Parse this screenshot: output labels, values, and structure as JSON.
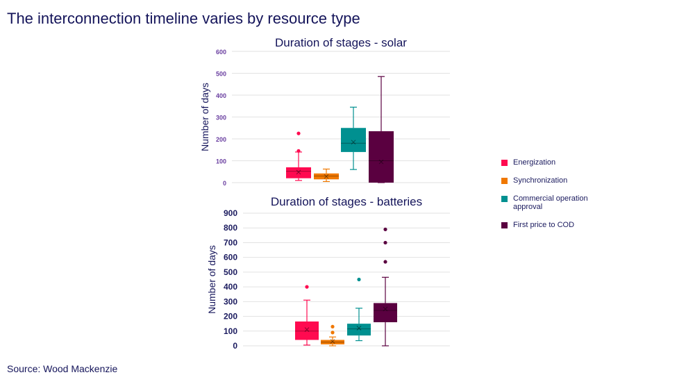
{
  "header": {
    "title": "The interconnection timeline varies by resource type"
  },
  "footer": {
    "source": "Source: Wood Mackenzie"
  },
  "legend": [
    {
      "label": "Energization",
      "color": "#ff0a50"
    },
    {
      "label": "Synchronization",
      "color": "#f07800"
    },
    {
      "label": "Commercial operation approval",
      "color": "#009090"
    },
    {
      "label": "First price to COD",
      "color": "#5a0040"
    }
  ],
  "chart_data": [
    {
      "type": "box",
      "title": "Duration of stages - solar",
      "ylabel": "Number of days",
      "ylim": [
        0,
        600
      ],
      "yticks": [
        0,
        100,
        200,
        300,
        400,
        500,
        600
      ],
      "tick_color": "#6a3fa0",
      "grid": true,
      "series": [
        {
          "name": "Energization",
          "color": "#ff0a50",
          "min": 10,
          "q1": 20,
          "median": 52,
          "q3": 70,
          "max": 140,
          "mean": 48,
          "outliers": [
            145,
            225
          ]
        },
        {
          "name": "Synchronization",
          "color": "#f07800",
          "min": 5,
          "q1": 15,
          "median": 30,
          "q3": 42,
          "max": 62,
          "mean": 28,
          "outliers": []
        },
        {
          "name": "Commercial operation approval",
          "color": "#009090",
          "min": 60,
          "q1": 140,
          "median": 180,
          "q3": 250,
          "max": 345,
          "mean": 185,
          "outliers": []
        },
        {
          "name": "First price to COD",
          "color": "#5a0040",
          "min": 0,
          "q1": 0,
          "median": 100,
          "q3": 235,
          "max": 485,
          "mean": 95,
          "outliers": []
        }
      ]
    },
    {
      "type": "box",
      "title": "Duration of stages - batteries",
      "ylabel": "Number of days",
      "ylim": [
        0,
        900
      ],
      "yticks": [
        0,
        100,
        200,
        300,
        400,
        500,
        600,
        700,
        800,
        900
      ],
      "tick_color": "#1a1a5e",
      "grid": true,
      "series": [
        {
          "name": "Energization",
          "color": "#ff0a50",
          "min": 5,
          "q1": 40,
          "median": 100,
          "q3": 165,
          "max": 310,
          "mean": 110,
          "outliers": [
            400
          ]
        },
        {
          "name": "Synchronization",
          "color": "#f07800",
          "min": 0,
          "q1": 10,
          "median": 25,
          "q3": 40,
          "max": 60,
          "mean": 30,
          "outliers": [
            90,
            130
          ]
        },
        {
          "name": "Commercial operation approval",
          "color": "#009090",
          "min": 35,
          "q1": 70,
          "median": 115,
          "q3": 150,
          "max": 255,
          "mean": 120,
          "outliers": [
            450
          ]
        },
        {
          "name": "First price to COD",
          "color": "#5a0040",
          "min": 0,
          "q1": 160,
          "median": 240,
          "q3": 290,
          "max": 465,
          "mean": 250,
          "outliers": [
            570,
            700,
            790
          ]
        }
      ]
    }
  ]
}
